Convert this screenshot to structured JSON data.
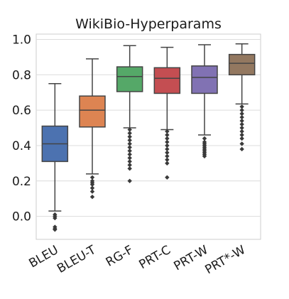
{
  "chart_data": {
    "type": "box",
    "title": "WikiBio-Hyperparams",
    "xlabel": "",
    "ylabel": "",
    "ylim": [
      -0.13,
      1.03
    ],
    "yticks": [
      0.0,
      0.2,
      0.4,
      0.6,
      0.8,
      1.0
    ],
    "ytick_labels": [
      "0.0",
      "0.2",
      "0.4",
      "0.6",
      "0.8",
      "1.0"
    ],
    "grid": true,
    "categories": [
      "BLEU",
      "BLEU-T",
      "RG-F",
      "PRT-C",
      "PRT-W",
      "PRT*-W"
    ],
    "series": [
      {
        "category": "BLEU",
        "color": "#4c72b0",
        "whisker_low": 0.03,
        "q1": 0.31,
        "median": 0.41,
        "q3": 0.51,
        "whisker_high": 0.75,
        "outliers": [
          0.01,
          0.0,
          -0.01,
          -0.06,
          -0.07,
          -0.075
        ]
      },
      {
        "category": "BLEU-T",
        "color": "#dd8452",
        "whisker_low": 0.24,
        "q1": 0.505,
        "median": 0.6,
        "q3": 0.68,
        "whisker_high": 0.89,
        "outliers": [
          0.22,
          0.2,
          0.19,
          0.18,
          0.16,
          0.14,
          0.11
        ]
      },
      {
        "category": "RG-F",
        "color": "#55a868",
        "whisker_low": 0.5,
        "q1": 0.705,
        "median": 0.79,
        "q3": 0.845,
        "whisker_high": 0.965,
        "outliers": [
          0.49,
          0.47,
          0.45,
          0.43,
          0.41,
          0.39,
          0.37,
          0.35,
          0.33,
          0.31,
          0.29,
          0.27,
          0.2
        ]
      },
      {
        "category": "PRT-C",
        "color": "#c44e52",
        "whisker_low": 0.49,
        "q1": 0.695,
        "median": 0.78,
        "q3": 0.84,
        "whisker_high": 0.955,
        "outliers": [
          0.48,
          0.46,
          0.44,
          0.42,
          0.4,
          0.38,
          0.36,
          0.34,
          0.32,
          0.3,
          0.22
        ]
      },
      {
        "category": "PRT-W",
        "color": "#8172b3",
        "whisker_low": 0.46,
        "q1": 0.695,
        "median": 0.785,
        "q3": 0.85,
        "whisker_high": 0.97,
        "outliers": [
          0.44,
          0.42,
          0.41,
          0.4,
          0.39,
          0.38,
          0.37,
          0.36,
          0.35,
          0.34
        ]
      },
      {
        "category": "PRT*-W",
        "color": "#937860",
        "whisker_low": 0.635,
        "q1": 0.8,
        "median": 0.865,
        "q3": 0.915,
        "whisker_high": 0.975,
        "outliers": [
          0.62,
          0.6,
          0.58,
          0.56,
          0.54,
          0.52,
          0.5,
          0.48,
          0.46,
          0.44,
          0.41,
          0.38
        ]
      }
    ]
  }
}
